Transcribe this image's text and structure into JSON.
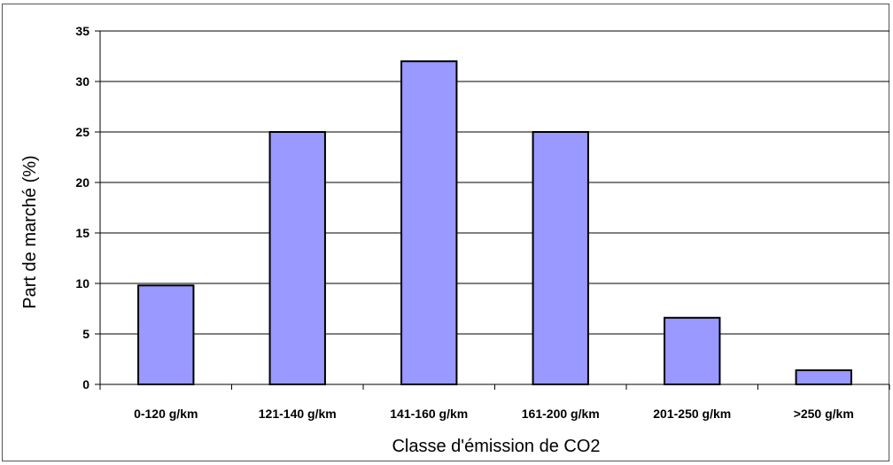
{
  "chart_data": {
    "type": "bar",
    "title": "",
    "xlabel": "Classe d'émission de CO2",
    "ylabel": "Part de marché (%)",
    "categories": [
      "0-120 g/km",
      "121-140 g/km",
      "141-160 g/km",
      "161-200 g/km",
      "201-250 g/km",
      ">250 g/km"
    ],
    "series": [
      {
        "values": [
          9.8,
          25,
          32,
          25,
          6.6,
          1.4
        ]
      }
    ],
    "ylim": [
      0,
      35
    ],
    "yticks": [
      "0",
      "5",
      "10",
      "15",
      "20",
      "25",
      "30",
      "35"
    ],
    "grid": true,
    "legend": "none",
    "bar_color": "#9999ff",
    "bar_edge_color": "#000000"
  }
}
